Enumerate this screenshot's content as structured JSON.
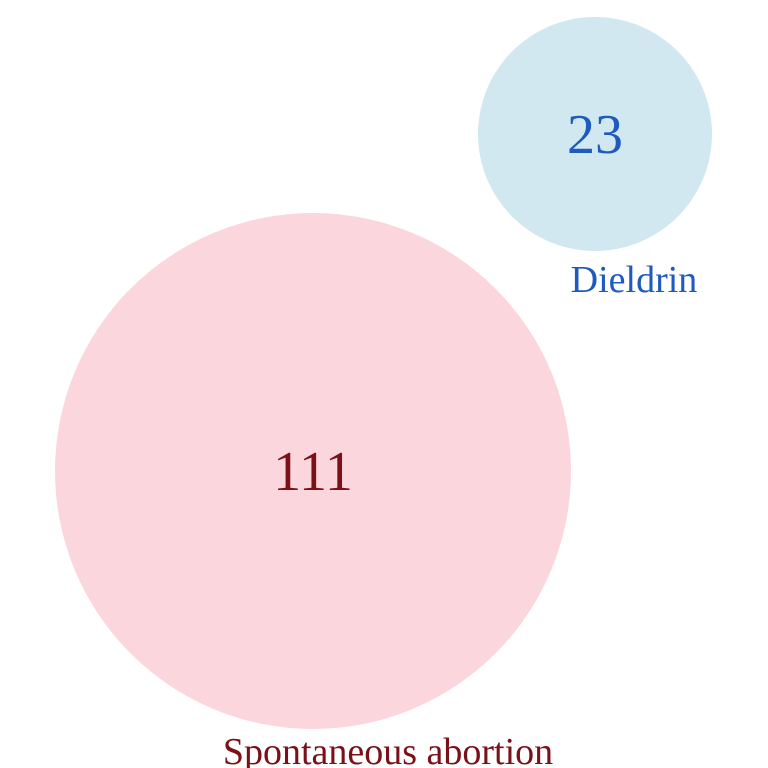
{
  "sets": [
    {
      "label": "Spontaneous abortion",
      "count": "111",
      "fill_color": "#fcd6dd",
      "text_color": "#7a1018"
    },
    {
      "label": "Dieldrin",
      "count": "23",
      "fill_color": "#d1e8f0",
      "text_color": "#1f5bbf"
    }
  ]
}
